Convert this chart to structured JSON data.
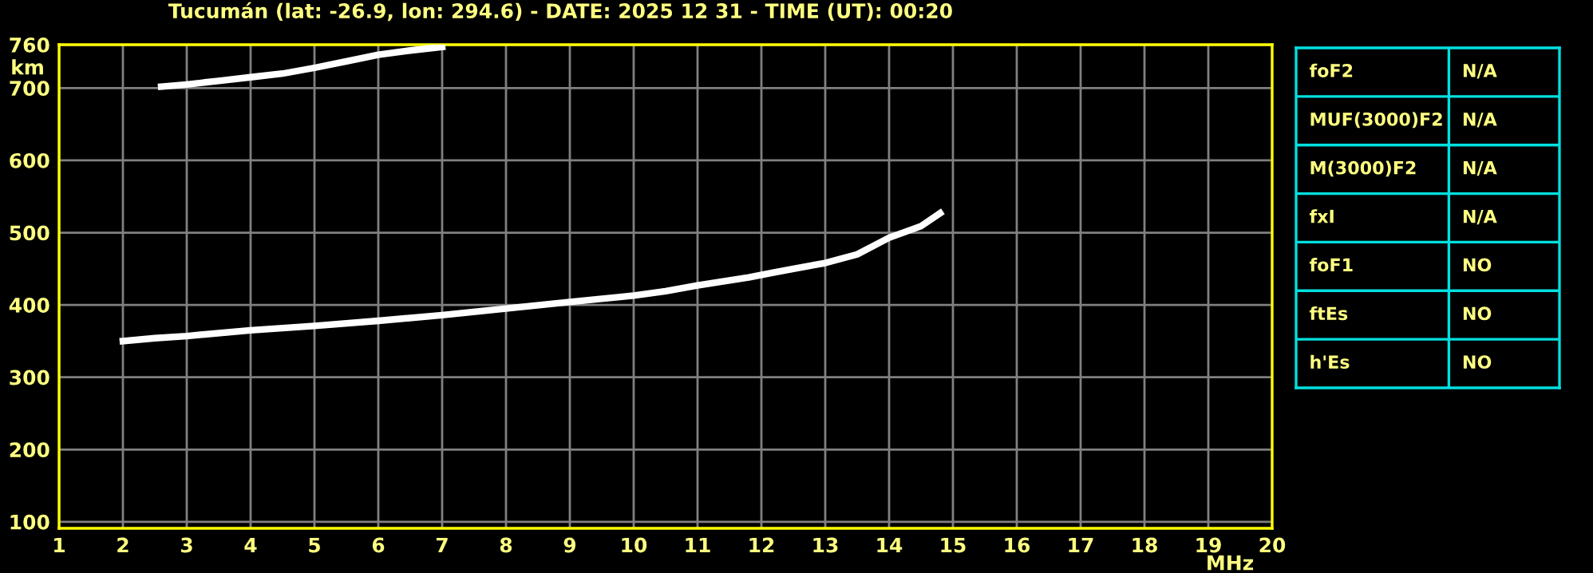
{
  "chart_data": [
    {
      "type": "line",
      "title": "Tucumán (lat: -26.9, lon: 294.6) - DATE: 2025 12 31 - TIME (UT): 00:20",
      "xlabel": "MHz",
      "ylabel": "km",
      "series": [
        {
          "color": "#ffffff",
          "x": [
            2.0,
            2.5,
            3.0,
            4.0,
            5.0,
            6.0,
            7.0,
            8.0,
            9.0,
            10.0,
            10.5,
            11.0,
            11.5,
            11.8,
            12.2,
            12.5,
            13.0,
            13.5,
            14.0,
            14.5,
            14.8
          ],
          "values": [
            350,
            354,
            357,
            365,
            371,
            378,
            386,
            395,
            404,
            413,
            419,
            427,
            434,
            438,
            445,
            450,
            458,
            470,
            493,
            509,
            527
          ]
        },
        {
          "color": "#ffffff",
          "x": [
            2.6,
            3.0,
            3.5,
            4.0,
            4.5,
            5.0,
            5.5,
            6.0,
            6.5,
            7.0
          ],
          "values": [
            702,
            705,
            710,
            715,
            720,
            728,
            737,
            746,
            752,
            757
          ]
        }
      ],
      "marker": "none",
      "line_style": "solid",
      "grid": true,
      "xlim": [
        1,
        20
      ],
      "xticks": [
        1,
        2,
        3,
        4,
        5,
        6,
        7,
        8,
        9,
        10,
        11,
        12,
        13,
        14,
        15,
        16,
        17,
        18,
        19,
        20
      ],
      "ylim": [
        91,
        760
      ],
      "yticks": [
        100,
        200,
        300,
        400,
        500,
        600,
        700,
        760
      ]
    },
    {
      "type": "other",
      "categories": [
        "foF2",
        "MUF(3000)F2",
        "M(3000)F2",
        "fxI",
        "foF1",
        "ftEs",
        "h'Es"
      ],
      "value_labels": [
        "N/A",
        "N/A",
        "N/A",
        "N/A",
        "NO",
        "NO",
        "NO"
      ]
    }
  ]
}
